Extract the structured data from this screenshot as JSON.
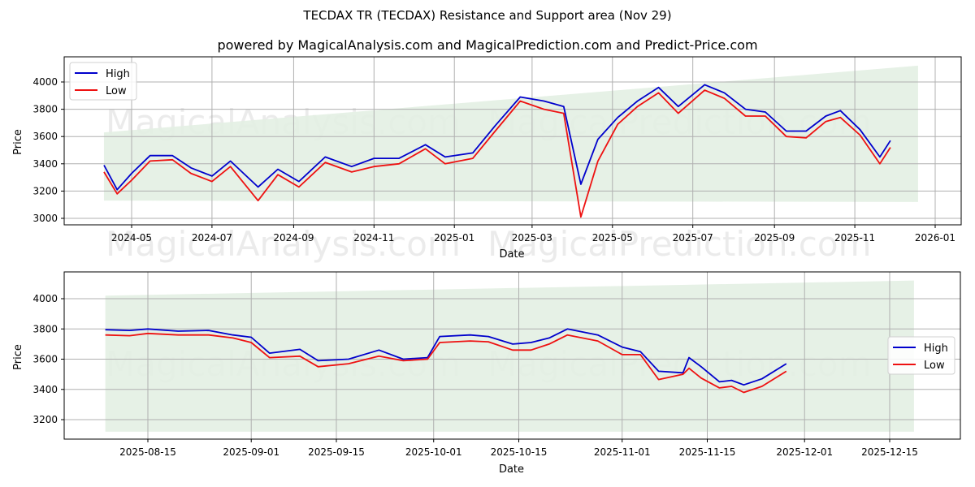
{
  "header": {
    "title": "TECDAX TR (TECDAX) Resistance and Support area (Nov 29)",
    "subtitle": "powered by MagicalAnalysis.com and MagicalPrediction.com and Predict-Price.com"
  },
  "watermarks": [
    "MagicalAnalysis.com",
    "MagicalPrediction.com"
  ],
  "colors": {
    "high": "#0000cc",
    "low": "#ee1111",
    "band": "#e3efe3",
    "grid": "#b0b0b0"
  },
  "chart_data": [
    {
      "type": "line",
      "title": "TECDAX TR (TECDAX) Resistance and Support area (Nov 29)",
      "xlabel": "Date",
      "ylabel": "Price",
      "ylim": [
        2950,
        4180
      ],
      "yticks": [
        3000,
        3200,
        3400,
        3600,
        3800,
        4000
      ],
      "xticks": [
        "2024-05",
        "2024-07",
        "2024-09",
        "2024-11",
        "2025-01",
        "2025-03",
        "2025-05",
        "2025-07",
        "2025-09",
        "2025-11",
        "2026-01"
      ],
      "legend": {
        "position": "upper left",
        "entries": [
          "High",
          "Low"
        ]
      },
      "grid": true,
      "band": {
        "start": "2024-04-10",
        "end": "2025-12-19",
        "lower": [
          3130,
          3120
        ],
        "upper": [
          3630,
          4120
        ]
      },
      "x": [
        "2024-04-10",
        "2024-04-20",
        "2024-05-01",
        "2024-05-15",
        "2024-06-01",
        "2024-06-15",
        "2024-07-01",
        "2024-07-15",
        "2024-08-05",
        "2024-08-20",
        "2024-09-05",
        "2024-09-25",
        "2024-10-15",
        "2024-11-01",
        "2024-11-20",
        "2024-12-10",
        "2024-12-25",
        "2025-01-15",
        "2025-02-01",
        "2025-02-20",
        "2025-03-10",
        "2025-03-25",
        "2025-04-07",
        "2025-04-20",
        "2025-05-05",
        "2025-05-20",
        "2025-06-05",
        "2025-06-20",
        "2025-07-10",
        "2025-07-25",
        "2025-08-10",
        "2025-08-25",
        "2025-09-10",
        "2025-09-25",
        "2025-10-10",
        "2025-10-21",
        "2025-11-05",
        "2025-11-20",
        "2025-11-28"
      ],
      "series": [
        {
          "name": "High",
          "values": [
            3390,
            3210,
            3330,
            3460,
            3460,
            3370,
            3310,
            3420,
            3230,
            3360,
            3270,
            3450,
            3380,
            3440,
            3440,
            3540,
            3450,
            3480,
            3680,
            3890,
            3860,
            3820,
            3250,
            3580,
            3740,
            3860,
            3960,
            3820,
            3980,
            3920,
            3800,
            3780,
            3640,
            3640,
            3750,
            3790,
            3650,
            3450,
            3570
          ]
        },
        {
          "name": "Low",
          "values": [
            3340,
            3180,
            3280,
            3420,
            3430,
            3330,
            3270,
            3380,
            3130,
            3320,
            3230,
            3410,
            3340,
            3380,
            3400,
            3510,
            3400,
            3440,
            3640,
            3860,
            3800,
            3770,
            3010,
            3420,
            3690,
            3820,
            3920,
            3770,
            3940,
            3880,
            3750,
            3750,
            3600,
            3590,
            3710,
            3740,
            3610,
            3400,
            3520
          ]
        }
      ]
    },
    {
      "type": "line",
      "xlabel": "Date",
      "ylabel": "Price",
      "ylim": [
        3070,
        4180
      ],
      "yticks": [
        3200,
        3400,
        3600,
        3800,
        4000
      ],
      "xticks": [
        "2025-08-15",
        "2025-09-01",
        "2025-09-15",
        "2025-10-01",
        "2025-10-15",
        "2025-11-01",
        "2025-11-15",
        "2025-12-01",
        "2025-12-15"
      ],
      "legend": {
        "position": "center right",
        "entries": [
          "High",
          "Low"
        ]
      },
      "grid": true,
      "band": {
        "start": "2025-08-08",
        "end": "2025-12-19",
        "lower": [
          3120,
          3120
        ],
        "upper": [
          4020,
          4120
        ]
      },
      "x": [
        "2025-08-08",
        "2025-08-12",
        "2025-08-15",
        "2025-08-20",
        "2025-08-25",
        "2025-08-29",
        "2025-09-01",
        "2025-09-04",
        "2025-09-09",
        "2025-09-12",
        "2025-09-17",
        "2025-09-22",
        "2025-09-26",
        "2025-09-30",
        "2025-10-02",
        "2025-10-07",
        "2025-10-10",
        "2025-10-14",
        "2025-10-17",
        "2025-10-20",
        "2025-10-23",
        "2025-10-28",
        "2025-11-01",
        "2025-11-04",
        "2025-11-07",
        "2025-11-11",
        "2025-11-12",
        "2025-11-14",
        "2025-11-17",
        "2025-11-19",
        "2025-11-21",
        "2025-11-24",
        "2025-11-28"
      ],
      "series": [
        {
          "name": "High",
          "values": [
            3795,
            3790,
            3800,
            3785,
            3790,
            3760,
            3745,
            3640,
            3665,
            3590,
            3600,
            3660,
            3600,
            3610,
            3750,
            3760,
            3750,
            3700,
            3710,
            3740,
            3800,
            3760,
            3680,
            3650,
            3520,
            3510,
            3610,
            3550,
            3450,
            3460,
            3430,
            3470,
            3570
          ]
        },
        {
          "name": "Low",
          "values": [
            3760,
            3755,
            3770,
            3760,
            3760,
            3740,
            3710,
            3610,
            3620,
            3550,
            3570,
            3620,
            3590,
            3600,
            3710,
            3720,
            3715,
            3660,
            3660,
            3700,
            3760,
            3720,
            3630,
            3630,
            3465,
            3500,
            3540,
            3475,
            3410,
            3420,
            3380,
            3420,
            3520
          ]
        }
      ]
    }
  ]
}
